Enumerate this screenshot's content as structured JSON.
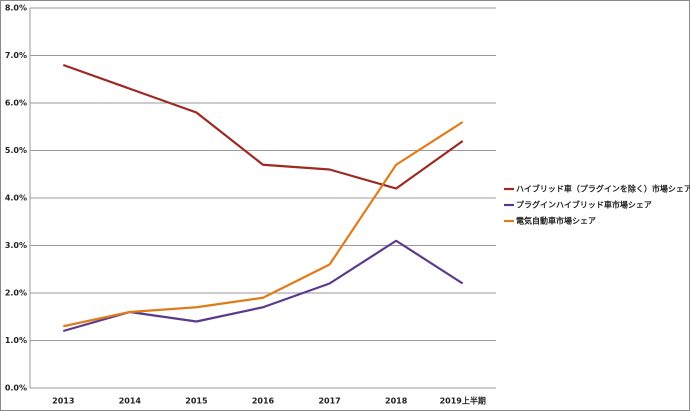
{
  "chart_data": {
    "type": "line",
    "categories": [
      "2013",
      "2014",
      "2015",
      "2016",
      "2017",
      "2018",
      "2019上半期"
    ],
    "series": [
      {
        "name": "ハイブリッド車（プラグインを除く）市場シェア",
        "color": "#9b2a22",
        "values": [
          6.8,
          6.3,
          5.8,
          4.7,
          4.6,
          4.2,
          5.2
        ]
      },
      {
        "name": "プラグインハイブリッド車市場シェア",
        "color": "#5b3a8c",
        "values": [
          1.2,
          1.6,
          1.4,
          1.7,
          2.2,
          3.1,
          2.2
        ]
      },
      {
        "name": "電気自動車市場シェア",
        "color": "#e07b1a",
        "values": [
          1.3,
          1.6,
          1.7,
          1.9,
          2.6,
          4.7,
          5.6
        ]
      }
    ],
    "ylim": [
      0,
      8
    ],
    "yticks": [
      {
        "value": 0,
        "label": "0.0%"
      },
      {
        "value": 1,
        "label": "1.0%"
      },
      {
        "value": 2,
        "label": "2.0%"
      },
      {
        "value": 3,
        "label": "3.0%"
      },
      {
        "value": 4,
        "label": "4.0%"
      },
      {
        "value": 5,
        "label": "5.0%"
      },
      {
        "value": 6,
        "label": "6.0%"
      },
      {
        "value": 7,
        "label": "7.0%"
      },
      {
        "value": 8,
        "label": "8.0%"
      }
    ],
    "grid": true,
    "legend": "right"
  }
}
